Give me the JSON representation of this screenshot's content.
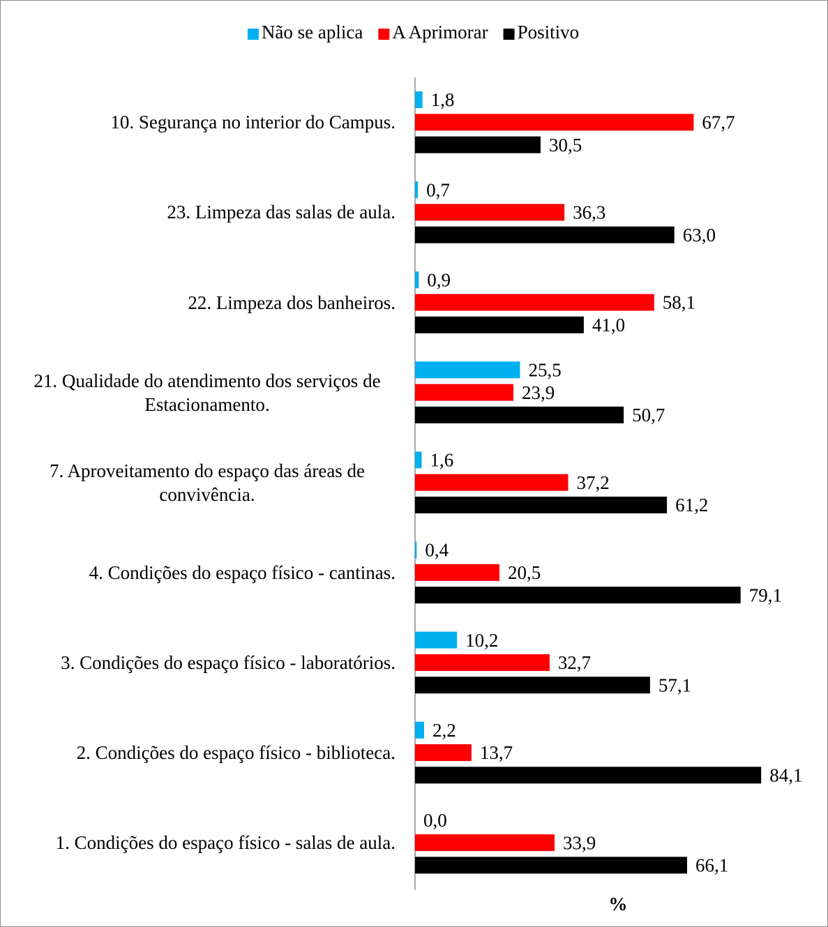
{
  "chart_data": {
    "type": "hbar",
    "categories": [
      "10. Segurança no interior do Campus.",
      "23. Limpeza das salas de aula.",
      "22. Limpeza dos banheiros.",
      "21. Qualidade do atendimento dos serviços de Estacionamento.",
      "7. Aproveitamento do espaço das áreas de convivência.",
      "4. Condições do espaço físico - cantinas.",
      "3. Condições do espaço físico - laboratórios.",
      "2. Condições do espaço físico - biblioteca.",
      "1. Condições do espaço físico - salas de aula."
    ],
    "series": [
      {
        "name": "Não se aplica",
        "color": "#00b0f0",
        "values": [
          1.8,
          0.7,
          0.9,
          25.5,
          1.6,
          0.4,
          10.2,
          2.2,
          0.0
        ],
        "value_labels": [
          "1,8",
          "0,7",
          "0,9",
          "25,5",
          "1,6",
          "0,4",
          "10,2",
          "2,2",
          "0,0"
        ]
      },
      {
        "name": "A Aprimorar",
        "color": "#ff0000",
        "values": [
          67.7,
          36.3,
          58.1,
          23.9,
          37.2,
          20.5,
          32.7,
          13.7,
          33.9
        ],
        "value_labels": [
          "67,7",
          "36,3",
          "58,1",
          "23,9",
          "37,2",
          "20,5",
          "32,7",
          "13,7",
          "33,9"
        ]
      },
      {
        "name": "Positivo",
        "color": "#000000",
        "values": [
          30.5,
          63.0,
          41.0,
          50.7,
          61.2,
          79.1,
          57.1,
          84.1,
          66.1
        ],
        "value_labels": [
          "30,5",
          "63,0",
          "41,0",
          "50,7",
          "61,2",
          "79,1",
          "57,1",
          "84,1",
          "66,1"
        ]
      }
    ],
    "x_label": "%",
    "xlim": [
      0,
      100
    ],
    "legend": "top"
  }
}
